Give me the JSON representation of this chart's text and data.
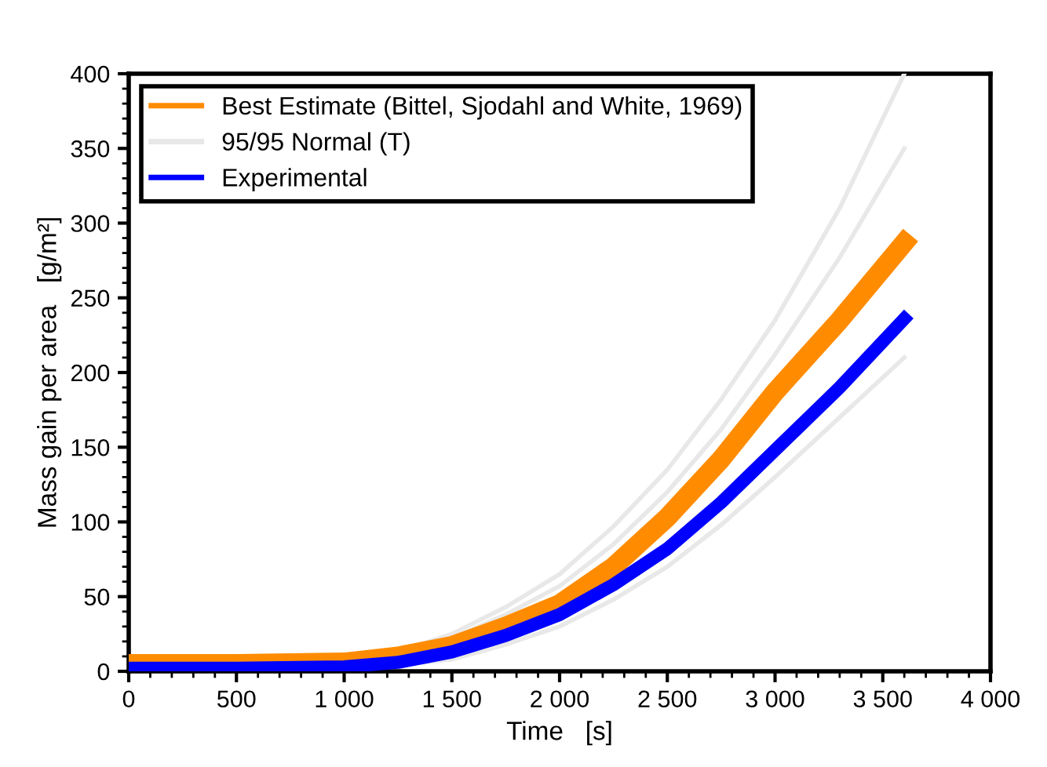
{
  "chart_data": {
    "type": "line",
    "xlabel": "Time   [s]",
    "ylabel": "Mass gain per area   [g/m²]",
    "xlim": [
      0,
      4000
    ],
    "ylim": [
      0,
      400
    ],
    "xticks": [
      0,
      500,
      {
        "value": 1000,
        "label": "1 000"
      },
      {
        "value": 1500,
        "label": "1 500"
      },
      {
        "value": 2000,
        "label": "2 000"
      },
      {
        "value": 2500,
        "label": "2 500"
      },
      {
        "value": 3000,
        "label": "3 000"
      },
      {
        "value": 3500,
        "label": "3 500"
      },
      {
        "value": 4000,
        "label": "4 000"
      }
    ],
    "yticks": [
      0,
      50,
      100,
      150,
      200,
      250,
      300,
      350,
      400
    ],
    "grid": false,
    "legend": "top left",
    "series": [
      {
        "name": "Best Estimate (Bittel, Sjodahl and White, 1969)",
        "color": "#ff8c00",
        "x": [
          0,
          500,
          1000,
          1250,
          1500,
          1750,
          2000,
          2250,
          2500,
          2750,
          3000,
          3300,
          3600
        ],
        "values": [
          5,
          5,
          6,
          10,
          17,
          30,
          45,
          70,
          103,
          142,
          187,
          235,
          287
        ]
      },
      {
        "name": "95/95 Normal (T)",
        "color": "#e8e8e8",
        "x": [
          0,
          500,
          1000,
          1250,
          1500,
          1750,
          2000,
          2250,
          2500,
          2750,
          3000,
          3300,
          3600
        ],
        "values": [
          5,
          5,
          7,
          12,
          22,
          38,
          57,
          85,
          120,
          162,
          212,
          277,
          350
        ]
      },
      {
        "color": "#e8e8e8",
        "x": [
          0,
          500,
          1000,
          1250,
          1500,
          1750,
          2000,
          2250,
          2500,
          2750,
          3000,
          3300,
          3600
        ],
        "values": [
          6,
          6,
          7,
          13,
          25,
          43,
          65,
          97,
          135,
          182,
          235,
          310,
          400
        ]
      },
      {
        "color": "#e8e8e8",
        "x": [
          0,
          500,
          1000,
          1250,
          1500,
          1750,
          2000,
          2250,
          2500,
          2750,
          3000,
          3300,
          3600
        ],
        "values": [
          1,
          1,
          2,
          4,
          8,
          18,
          30,
          48,
          70,
          98,
          130,
          170,
          210
        ]
      },
      {
        "name": "Experimental",
        "color": "#0000ff",
        "x": [
          0,
          500,
          1000,
          1250,
          1500,
          1750,
          2000,
          2250,
          2500,
          2750,
          3000,
          3300,
          3600
        ],
        "values": [
          2,
          2,
          3,
          6,
          13,
          24,
          38,
          58,
          82,
          113,
          148,
          190,
          236
        ]
      }
    ]
  }
}
